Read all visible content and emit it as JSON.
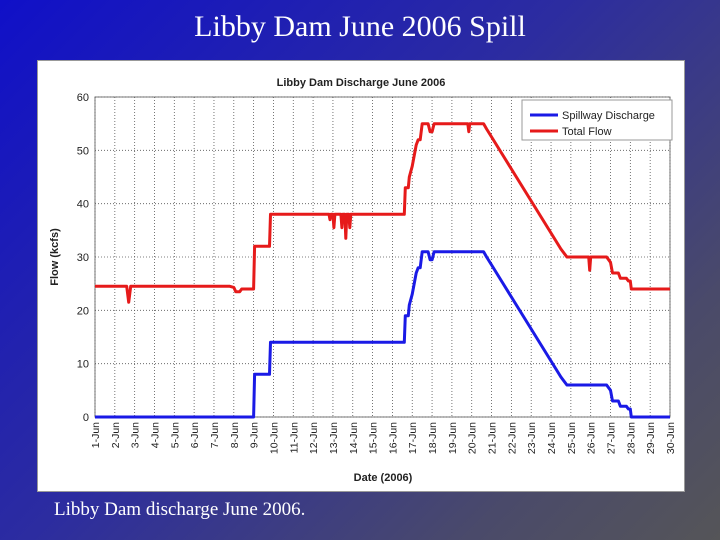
{
  "slide": {
    "title": "Libby Dam June 2006 Spill",
    "caption": "Libby Dam discharge June 2006."
  },
  "chart_data": {
    "type": "line",
    "title": "Libby Dam Discharge June 2006",
    "xlabel": "Date (2006)",
    "ylabel": "Flow (kcfs)",
    "xlim": [
      1,
      30
    ],
    "ylim": [
      0,
      60
    ],
    "y_ticks": [
      0,
      10,
      20,
      30,
      40,
      50,
      60
    ],
    "x_tick_labels": [
      "1-Jun",
      "2-Jun",
      "3-Jun",
      "4-Jun",
      "5-Jun",
      "6-Jun",
      "7-Jun",
      "8-Jun",
      "9-Jun",
      "10-Jun",
      "11-Jun",
      "12-Jun",
      "13-Jun",
      "14-Jun",
      "15-Jun",
      "16-Jun",
      "17-Jun",
      "18-Jun",
      "19-Jun",
      "20-Jun",
      "21-Jun",
      "22-Jun",
      "23-Jun",
      "24-Jun",
      "25-Jun",
      "26-Jun",
      "27-Jun",
      "28-Jun",
      "29-Jun",
      "30-Jun"
    ],
    "legend_position": "top-right",
    "series": [
      {
        "name": "Spillway Discharge",
        "color": "#1a1ae6",
        "points": [
          [
            1,
            0
          ],
          [
            9.0,
            0
          ],
          [
            9.05,
            8
          ],
          [
            9.8,
            8
          ],
          [
            9.85,
            14
          ],
          [
            16.6,
            14
          ],
          [
            16.65,
            19
          ],
          [
            16.8,
            19
          ],
          [
            16.85,
            21
          ],
          [
            17.0,
            23
          ],
          [
            17.1,
            25
          ],
          [
            17.2,
            27
          ],
          [
            17.3,
            28
          ],
          [
            17.4,
            28
          ],
          [
            17.5,
            31
          ],
          [
            17.8,
            31
          ],
          [
            17.9,
            29.5
          ],
          [
            18.0,
            29.5
          ],
          [
            18.1,
            31
          ],
          [
            20.6,
            31
          ],
          [
            20.75,
            30
          ],
          [
            21.0,
            28.5
          ],
          [
            21.5,
            25.5
          ],
          [
            22.0,
            22.5
          ],
          [
            22.5,
            19.5
          ],
          [
            23.0,
            16.5
          ],
          [
            23.5,
            13.5
          ],
          [
            24.0,
            10.5
          ],
          [
            24.5,
            7.5
          ],
          [
            24.8,
            6
          ],
          [
            26.8,
            6
          ],
          [
            27.0,
            5
          ],
          [
            27.1,
            3
          ],
          [
            27.4,
            3
          ],
          [
            27.5,
            2
          ],
          [
            27.8,
            2
          ],
          [
            27.9,
            1.5
          ],
          [
            28.0,
            1.5
          ],
          [
            28.05,
            0
          ],
          [
            30,
            0
          ]
        ]
      },
      {
        "name": "Total Flow",
        "color": "#e61a1a",
        "points": [
          [
            1,
            24.5
          ],
          [
            2.6,
            24.5
          ],
          [
            2.7,
            21.5
          ],
          [
            2.8,
            24.5
          ],
          [
            7.8,
            24.5
          ],
          [
            8.0,
            24.3
          ],
          [
            8.1,
            23.5
          ],
          [
            8.3,
            23.5
          ],
          [
            8.4,
            24
          ],
          [
            9.0,
            24
          ],
          [
            9.05,
            32
          ],
          [
            9.8,
            32
          ],
          [
            9.85,
            38
          ],
          [
            12.8,
            38
          ],
          [
            12.85,
            37
          ],
          [
            12.9,
            38
          ],
          [
            13.0,
            38
          ],
          [
            13.05,
            35.5
          ],
          [
            13.1,
            38
          ],
          [
            13.4,
            38
          ],
          [
            13.45,
            35.5
          ],
          [
            13.5,
            38
          ],
          [
            13.6,
            38
          ],
          [
            13.65,
            33.5
          ],
          [
            13.7,
            38
          ],
          [
            13.8,
            38
          ],
          [
            13.85,
            35.5
          ],
          [
            13.9,
            38
          ],
          [
            16.6,
            38
          ],
          [
            16.65,
            43
          ],
          [
            16.8,
            43
          ],
          [
            16.85,
            45
          ],
          [
            17.0,
            47
          ],
          [
            17.1,
            49
          ],
          [
            17.2,
            51
          ],
          [
            17.3,
            52
          ],
          [
            17.4,
            52
          ],
          [
            17.5,
            55
          ],
          [
            17.8,
            55
          ],
          [
            17.9,
            53.5
          ],
          [
            18.0,
            53.5
          ],
          [
            18.1,
            55
          ],
          [
            19.8,
            55
          ],
          [
            19.85,
            53.5
          ],
          [
            19.9,
            55
          ],
          [
            20.6,
            55
          ],
          [
            20.75,
            54
          ],
          [
            21.0,
            52.5
          ],
          [
            21.5,
            49.5
          ],
          [
            22.0,
            46.5
          ],
          [
            22.5,
            43.5
          ],
          [
            23.0,
            40.5
          ],
          [
            23.5,
            37.5
          ],
          [
            24.0,
            34.5
          ],
          [
            24.5,
            31.5
          ],
          [
            24.8,
            30
          ],
          [
            25.9,
            30
          ],
          [
            25.95,
            27.5
          ],
          [
            26.0,
            30
          ],
          [
            26.8,
            30
          ],
          [
            27.0,
            29
          ],
          [
            27.1,
            27
          ],
          [
            27.4,
            27
          ],
          [
            27.5,
            26
          ],
          [
            27.8,
            26
          ],
          [
            27.9,
            25.5
          ],
          [
            28.0,
            25.5
          ],
          [
            28.05,
            24
          ],
          [
            30,
            24
          ]
        ]
      }
    ]
  }
}
